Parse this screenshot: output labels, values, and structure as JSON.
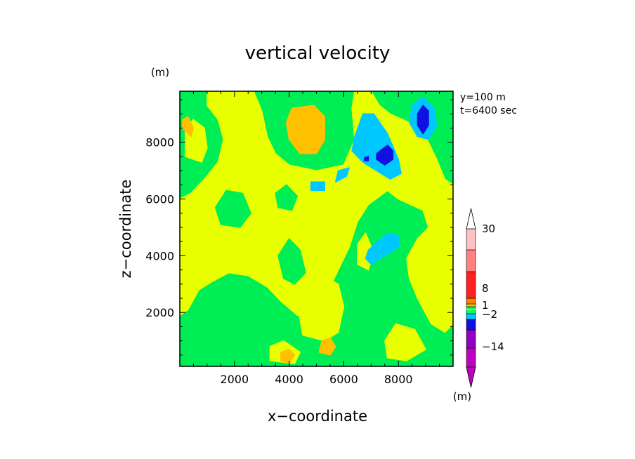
{
  "chart_data": {
    "type": "heatmap",
    "title": "vertical velocity",
    "xlabel": "x−coordinate",
    "ylabel": "z−coordinate",
    "y_unit": "(m)",
    "colorbar_unit": "(m)",
    "annotations": [
      "y=100 m",
      "t=6400 sec"
    ],
    "xlim": [
      0,
      10000
    ],
    "ylim": [
      100,
      9800
    ],
    "x_ticks": [
      2000,
      4000,
      6000,
      8000
    ],
    "x_tick_labels": [
      "2000",
      "4000",
      "6000",
      "8000"
    ],
    "y_ticks": [
      2000,
      4000,
      6000,
      8000
    ],
    "y_tick_labels": [
      "2000",
      "4000",
      "6000",
      "8000"
    ],
    "colorbar_labels": [
      {
        "text": "30",
        "level": 30
      },
      {
        "text": "8",
        "level": 8
      },
      {
        "text": "1",
        "level": 1
      },
      {
        "text": "−2",
        "level": -2
      },
      {
        "text": "−14",
        "level": -14
      }
    ],
    "colorbar_colors": [
      "#c000c0",
      "#9000c0",
      "#1010e0",
      "#00c8ff",
      "#00ff60",
      "#e8ff00",
      "#ffc000",
      "#ff8000",
      "#ff2020",
      "#ff8080",
      "#ffc0c0"
    ],
    "background_color": "#00ee55",
    "regions": [
      {
        "level": "weak-positive",
        "color": "#e8ff00",
        "points": [
          [
            1000,
            9800
          ],
          [
            2700,
            9800
          ],
          [
            3000,
            9100
          ],
          [
            3200,
            8200
          ],
          [
            3500,
            7600
          ],
          [
            4000,
            7200
          ],
          [
            5000,
            7000
          ],
          [
            6000,
            7200
          ],
          [
            6400,
            8100
          ],
          [
            6300,
            9200
          ],
          [
            6400,
            9800
          ],
          [
            7000,
            9800
          ],
          [
            7300,
            9300
          ],
          [
            7700,
            9000
          ],
          [
            8400,
            8700
          ],
          [
            9000,
            8200
          ],
          [
            9400,
            7400
          ],
          [
            9700,
            6700
          ],
          [
            10000,
            6500
          ],
          [
            10000,
            1600
          ],
          [
            9700,
            1300
          ],
          [
            9200,
            1600
          ],
          [
            8700,
            2500
          ],
          [
            8400,
            3200
          ],
          [
            8300,
            3900
          ],
          [
            8700,
            4600
          ],
          [
            9100,
            5000
          ],
          [
            8900,
            5600
          ],
          [
            8000,
            6000
          ],
          [
            7600,
            6300
          ],
          [
            6900,
            5800
          ],
          [
            6500,
            5200
          ],
          [
            6200,
            4300
          ],
          [
            5800,
            3500
          ],
          [
            5400,
            2700
          ],
          [
            4900,
            2000
          ],
          [
            4300,
            1900
          ],
          [
            3700,
            2400
          ],
          [
            3200,
            2900
          ],
          [
            2500,
            3300
          ],
          [
            1800,
            3400
          ],
          [
            1200,
            3100
          ],
          [
            700,
            2800
          ],
          [
            300,
            2100
          ],
          [
            0,
            1900
          ],
          [
            0,
            6000
          ],
          [
            400,
            6200
          ],
          [
            900,
            6700
          ],
          [
            1400,
            7300
          ],
          [
            1600,
            8100
          ],
          [
            1400,
            8800
          ],
          [
            1000,
            9300
          ]
        ]
      },
      {
        "level": "weak-positive",
        "color": "#e8ff00",
        "points": [
          [
            200,
            7500
          ],
          [
            800,
            7300
          ],
          [
            1000,
            7800
          ],
          [
            900,
            8500
          ],
          [
            500,
            8800
          ],
          [
            200,
            8500
          ]
        ]
      },
      {
        "level": "weak-positive",
        "color": "#e8ff00",
        "points": [
          [
            4500,
            1200
          ],
          [
            5300,
            1000
          ],
          [
            5800,
            1300
          ],
          [
            6000,
            2200
          ],
          [
            5800,
            3000
          ],
          [
            5200,
            3300
          ],
          [
            4700,
            3000
          ],
          [
            4300,
            2300
          ]
        ]
      },
      {
        "level": "weak-positive",
        "color": "#e8ff00",
        "points": [
          [
            7600,
            400
          ],
          [
            8300,
            300
          ],
          [
            9000,
            700
          ],
          [
            8600,
            1400
          ],
          [
            7900,
            1600
          ],
          [
            7500,
            1000
          ]
        ]
      },
      {
        "level": "weak-positive",
        "color": "#e8ff00",
        "points": [
          [
            3300,
            300
          ],
          [
            4200,
            200
          ],
          [
            4400,
            600
          ],
          [
            3800,
            1000
          ],
          [
            3300,
            800
          ]
        ]
      },
      {
        "level": "weak-positive",
        "color": "#e8ff00",
        "points": [
          [
            6500,
            3700
          ],
          [
            6900,
            3500
          ],
          [
            7100,
            4100
          ],
          [
            6800,
            4800
          ],
          [
            6500,
            4400
          ]
        ]
      },
      {
        "level": "near-zero",
        "color": "#00ee55",
        "points": [
          [
            3800,
            3200
          ],
          [
            4200,
            3000
          ],
          [
            4600,
            3400
          ],
          [
            4400,
            4200
          ],
          [
            4000,
            4600
          ],
          [
            3600,
            4000
          ]
        ]
      },
      {
        "level": "near-zero",
        "color": "#00ee55",
        "points": [
          [
            1500,
            5100
          ],
          [
            2200,
            5000
          ],
          [
            2600,
            5500
          ],
          [
            2300,
            6200
          ],
          [
            1700,
            6300
          ],
          [
            1300,
            5700
          ]
        ]
      },
      {
        "level": "near-zero",
        "color": "#00ee55",
        "points": [
          [
            3600,
            5700
          ],
          [
            4100,
            5600
          ],
          [
            4300,
            6100
          ],
          [
            3900,
            6500
          ],
          [
            3500,
            6200
          ]
        ]
      },
      {
        "level": "moderate-positive",
        "color": "#ffc000",
        "points": [
          [
            4100,
            9200
          ],
          [
            4900,
            9300
          ],
          [
            5300,
            8900
          ],
          [
            5300,
            8100
          ],
          [
            5000,
            7600
          ],
          [
            4400,
            7600
          ],
          [
            4000,
            8100
          ],
          [
            3900,
            8700
          ]
        ]
      },
      {
        "level": "moderate-positive",
        "color": "#ffc000",
        "points": [
          [
            100,
            8500
          ],
          [
            400,
            8200
          ],
          [
            500,
            8500
          ],
          [
            300,
            8900
          ],
          [
            100,
            8800
          ]
        ]
      },
      {
        "level": "moderate-positive",
        "color": "#ffc000",
        "points": [
          [
            5100,
            600
          ],
          [
            5500,
            500
          ],
          [
            5700,
            800
          ],
          [
            5500,
            1100
          ],
          [
            5200,
            1000
          ]
        ]
      },
      {
        "level": "moderate-positive",
        "color": "#ffc000",
        "points": [
          [
            3700,
            300
          ],
          [
            4000,
            200
          ],
          [
            4200,
            500
          ],
          [
            4000,
            700
          ],
          [
            3700,
            600
          ]
        ]
      },
      {
        "level": "weak-negative",
        "color": "#00c8ff",
        "points": [
          [
            6400,
            8200
          ],
          [
            6700,
            9000
          ],
          [
            7100,
            9000
          ],
          [
            7600,
            8300
          ],
          [
            8000,
            7400
          ],
          [
            8100,
            6900
          ],
          [
            7700,
            6700
          ],
          [
            7200,
            7000
          ],
          [
            6700,
            7300
          ],
          [
            6300,
            7700
          ]
        ]
      },
      {
        "level": "weak-negative",
        "color": "#00c8ff",
        "points": [
          [
            8500,
            9300
          ],
          [
            8900,
            9600
          ],
          [
            9300,
            9200
          ],
          [
            9400,
            8600
          ],
          [
            9100,
            8100
          ],
          [
            8700,
            8200
          ],
          [
            8400,
            8700
          ]
        ]
      },
      {
        "level": "weak-negative",
        "color": "#00c8ff",
        "points": [
          [
            6900,
            4200
          ],
          [
            7600,
            4800
          ],
          [
            8000,
            4700
          ],
          [
            8000,
            4300
          ],
          [
            7500,
            4000
          ],
          [
            7000,
            3700
          ],
          [
            6800,
            3900
          ]
        ]
      },
      {
        "level": "weak-negative",
        "color": "#00c8ff",
        "points": [
          [
            4800,
            6300
          ],
          [
            5300,
            6300
          ],
          [
            5300,
            6600
          ],
          [
            4800,
            6600
          ]
        ]
      },
      {
        "level": "weak-negative",
        "color": "#00c8ff",
        "points": [
          [
            5700,
            6600
          ],
          [
            6100,
            6800
          ],
          [
            6200,
            7100
          ],
          [
            5800,
            7000
          ]
        ]
      },
      {
        "level": "strong-negative",
        "color": "#1010e0",
        "points": [
          [
            7200,
            7600
          ],
          [
            7600,
            7900
          ],
          [
            7800,
            7700
          ],
          [
            7800,
            7400
          ],
          [
            7500,
            7200
          ],
          [
            7200,
            7400
          ]
        ]
      },
      {
        "level": "strong-negative",
        "color": "#1010e0",
        "points": [
          [
            8700,
            9000
          ],
          [
            8900,
            9300
          ],
          [
            9100,
            9100
          ],
          [
            9100,
            8600
          ],
          [
            8900,
            8300
          ],
          [
            8700,
            8600
          ]
        ]
      },
      {
        "level": "strong-negative",
        "color": "#1010e0",
        "points": [
          [
            6750,
            7450
          ],
          [
            6900,
            7500
          ],
          [
            6900,
            7350
          ],
          [
            6750,
            7350
          ]
        ]
      }
    ]
  }
}
